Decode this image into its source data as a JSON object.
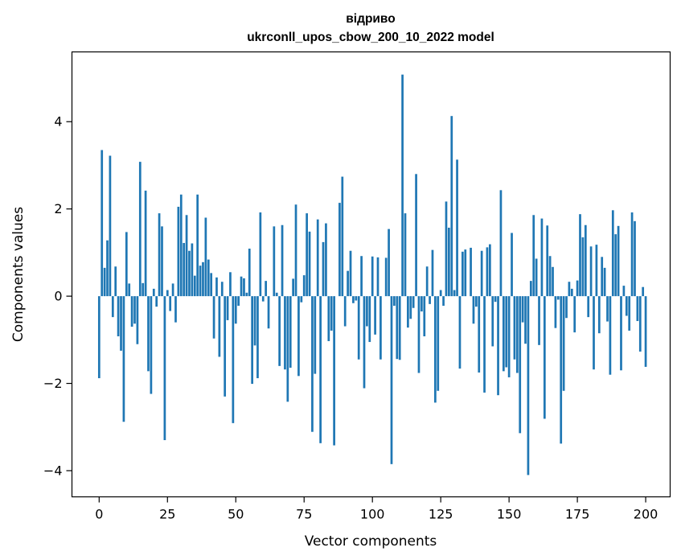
{
  "chart_data": {
    "type": "bar",
    "title": "відриво",
    "subtitle": "ukrconll_upos_cbow_200_10_2022 model",
    "xlabel": "Vector components",
    "ylabel": "Components values",
    "xlim": [
      -9.95,
      208.95
    ],
    "ylim": [
      -4.6,
      5.6
    ],
    "xticks": [
      0,
      25,
      50,
      75,
      100,
      125,
      150,
      175,
      200
    ],
    "yticks": [
      -4,
      -2,
      0,
      2,
      4
    ],
    "ytick_labels": [
      "−4",
      "−2",
      "0",
      "2",
      "4"
    ],
    "grid": false,
    "values": [
      -1.88,
      3.35,
      0.65,
      1.28,
      3.22,
      -0.48,
      0.68,
      -0.92,
      -1.25,
      -2.88,
      1.47,
      0.29,
      -0.7,
      -0.63,
      -1.1,
      3.08,
      0.3,
      2.42,
      -1.72,
      -2.24,
      0.17,
      -0.24,
      1.9,
      1.6,
      -3.3,
      0.14,
      -0.34,
      0.29,
      -0.6,
      2.05,
      2.33,
      1.22,
      1.86,
      1.04,
      1.21,
      0.47,
      2.33,
      0.7,
      0.78,
      1.8,
      0.84,
      0.53,
      -0.97,
      0.43,
      -1.39,
      0.33,
      -2.3,
      -0.55,
      0.55,
      -2.91,
      -0.63,
      -0.22,
      0.45,
      0.41,
      0.08,
      1.09,
      -2.01,
      -1.13,
      -1.88,
      1.92,
      -0.12,
      0.35,
      -0.74,
      0.0,
      1.6,
      0.08,
      -1.6,
      1.63,
      -1.68,
      -2.42,
      -1.64,
      0.4,
      2.1,
      -1.83,
      -0.14,
      0.48,
      1.9,
      1.48,
      -3.11,
      -1.78,
      1.76,
      -3.37,
      1.24,
      1.67,
      -1.03,
      -0.79,
      -3.42,
      0.0,
      2.14,
      2.74,
      -0.69,
      0.58,
      1.04,
      -0.16,
      -0.1,
      -1.45,
      0.92,
      -2.11,
      -0.69,
      -1.05,
      0.91,
      -0.88,
      0.89,
      -1.45,
      0.0,
      0.88,
      1.54,
      -3.85,
      -0.22,
      -1.44,
      -1.46,
      5.08,
      1.9,
      -0.72,
      -0.52,
      -0.27,
      2.8,
      -1.76,
      -0.35,
      -0.92,
      0.68,
      -0.18,
      1.06,
      -2.44,
      -2.17,
      0.14,
      -0.22,
      2.17,
      1.57,
      4.13,
      0.14,
      3.13,
      -1.66,
      1.02,
      1.07,
      0.0,
      1.11,
      -0.63,
      -0.24,
      -1.75,
      1.04,
      -2.21,
      1.12,
      1.19,
      -1.15,
      -0.13,
      -2.27,
      2.43,
      -1.72,
      -1.63,
      -1.86,
      1.45,
      -1.45,
      -1.76,
      -3.14,
      -0.6,
      -1.09,
      -4.1,
      0.35,
      1.86,
      0.86,
      -1.12,
      1.78,
      -2.81,
      1.62,
      0.92,
      0.67,
      -0.73,
      -0.08,
      -3.38,
      -2.17,
      -0.5,
      0.33,
      0.17,
      -0.83,
      0.36,
      1.88,
      1.35,
      1.63,
      -0.48,
      1.14,
      -1.68,
      1.18,
      -0.85,
      0.9,
      0.65,
      -0.58,
      -1.8,
      1.97,
      1.42,
      1.61,
      -1.7,
      0.24,
      -0.45,
      -0.79,
      1.92,
      1.72,
      -0.57,
      -1.27,
      0.21,
      -1.62
    ]
  }
}
